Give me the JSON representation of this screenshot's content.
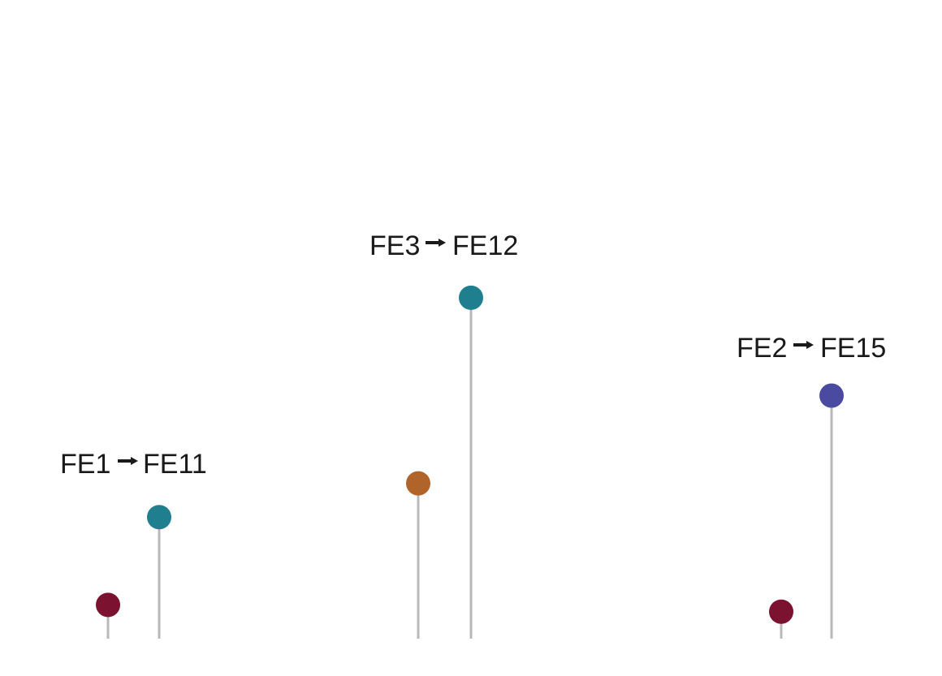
{
  "chart_data": {
    "type": "lollipop",
    "title": "",
    "xlabel": "",
    "ylabel": "",
    "grid": false,
    "legend": "none",
    "ylim": [
      0,
      100
    ],
    "points": [
      {
        "id": "p1",
        "value": 10,
        "color": "#7a1230"
      },
      {
        "id": "p2",
        "value": 36,
        "color": "#1f7f8e"
      },
      {
        "id": "p3",
        "value": 46,
        "color": "#b0642a"
      },
      {
        "id": "p4",
        "value": 101,
        "color": "#1f7f8e"
      },
      {
        "id": "p5",
        "value": 8,
        "color": "#7a1230"
      },
      {
        "id": "p6",
        "value": 72,
        "color": "#4a4ba0"
      }
    ],
    "annotations": [
      {
        "id": "a1",
        "from": "FE1",
        "to": "FE11"
      },
      {
        "id": "a2",
        "from": "FE3",
        "to": "FE12"
      },
      {
        "id": "a3",
        "from": "FE2",
        "to": "FE15"
      }
    ]
  }
}
